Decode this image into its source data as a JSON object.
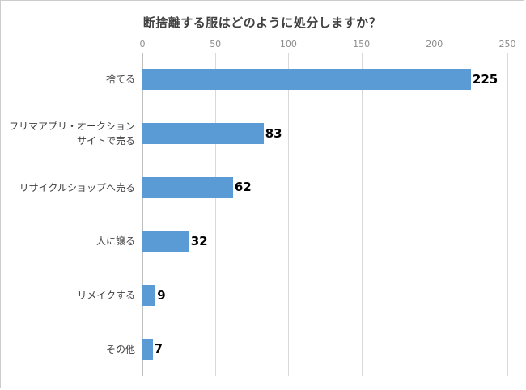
{
  "chart_data": {
    "type": "bar",
    "orientation": "horizontal",
    "title": "断捨離する服はどのように処分しますか？",
    "categories": [
      "捨てる",
      "フリマアプリ・オークション\nサイトで売る",
      "リサイクルショップへ売る",
      "人に譲る",
      "リメイクする",
      "その他"
    ],
    "values": [
      225,
      83,
      62,
      32,
      9,
      7
    ],
    "value_labels": [
      "225",
      "83",
      "62",
      "32",
      "9",
      "7"
    ],
    "xlim": [
      0,
      250
    ],
    "ticks": [
      0,
      50,
      100,
      150,
      200,
      250
    ],
    "axis_position": "top",
    "grid": true,
    "bar_color": "#5b9bd5",
    "gridline_color": "#d9d9d9",
    "title_color": "#404040",
    "tick_color": "#8c8c8c",
    "legend": "none"
  }
}
